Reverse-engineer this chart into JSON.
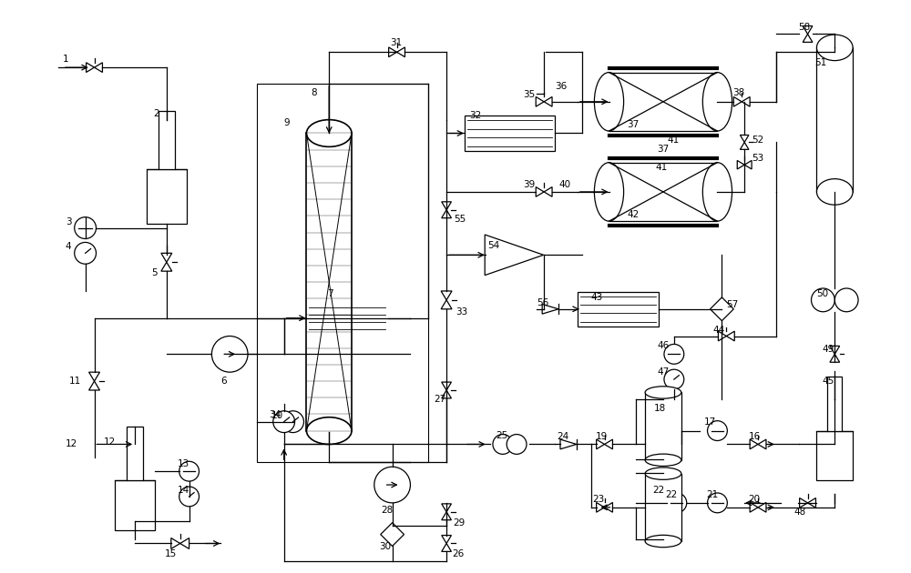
{
  "background": "#ffffff",
  "line_color": "#000000",
  "fig_width": 10.0,
  "fig_height": 6.3
}
